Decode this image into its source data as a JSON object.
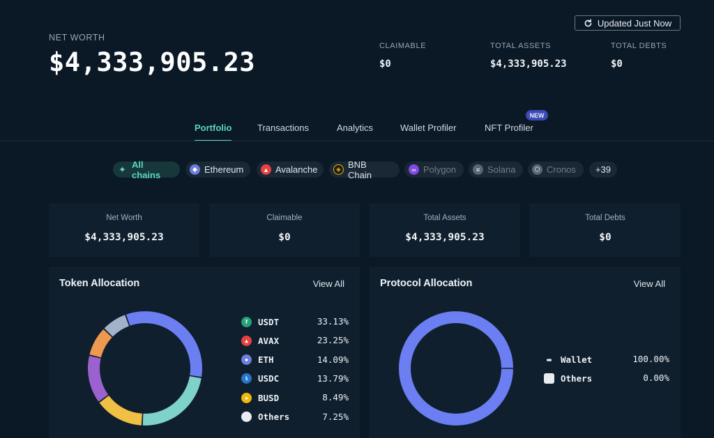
{
  "header": {
    "net_worth_label": "NET WORTH",
    "net_worth_value": "$4,333,905.23",
    "updated_label": "Updated Just Now",
    "stats": [
      {
        "label": "CLAIMABLE",
        "value": "$0"
      },
      {
        "label": "TOTAL ASSETS",
        "value": "$4,333,905.23"
      },
      {
        "label": "TOTAL DEBTS",
        "value": "$0"
      }
    ]
  },
  "tabs": [
    {
      "label": "Portfolio",
      "active": true
    },
    {
      "label": "Transactions"
    },
    {
      "label": "Analytics"
    },
    {
      "label": "Wallet Profiler"
    },
    {
      "label": "NFT Profiler",
      "badge": "NEW"
    }
  ],
  "chains": [
    {
      "label": "All chains",
      "icon": "sparkle-icon",
      "color": "#59d6c3",
      "state": "active"
    },
    {
      "label": "Ethereum",
      "icon": "ethereum-icon",
      "color": "#6c7ee0"
    },
    {
      "label": "Avalanche",
      "icon": "avalanche-icon",
      "color": "#e84142"
    },
    {
      "label": "BNB Chain",
      "icon": "bnb-icon",
      "color": "#f0b90b"
    },
    {
      "label": "Polygon",
      "icon": "polygon-icon",
      "color": "#8247e5",
      "state": "dim"
    },
    {
      "label": "Solana",
      "icon": "solana-icon",
      "color": "#5a6674",
      "state": "dim"
    },
    {
      "label": "Cronos",
      "icon": "cronos-icon",
      "color": "#5a6674",
      "state": "dim"
    },
    {
      "label": "+39"
    }
  ],
  "cards": [
    {
      "label": "Net Worth",
      "value": "$4,333,905.23"
    },
    {
      "label": "Claimable",
      "value": "$0"
    },
    {
      "label": "Total Assets",
      "value": "$4,333,905.23"
    },
    {
      "label": "Total Debts",
      "value": "$0"
    }
  ],
  "token_panel": {
    "title": "Token Allocation",
    "view_all": "View All",
    "items": [
      {
        "name": "USDT",
        "pct": "33.13%",
        "value": 33.13,
        "color": "#6b7ff2",
        "icon_color": "#26a17b",
        "icon": "tether-icon"
      },
      {
        "name": "AVAX",
        "pct": "23.25%",
        "value": 23.25,
        "color": "#7fd1cb",
        "icon_color": "#e84142",
        "icon": "avalanche-icon"
      },
      {
        "name": "ETH",
        "pct": "14.09%",
        "value": 14.09,
        "color": "#f0c044",
        "icon_color": "#6c7ee0",
        "icon": "ethereum-icon"
      },
      {
        "name": "USDC",
        "pct": "13.79%",
        "value": 13.79,
        "color": "#9b62cf",
        "icon_color": "#2775ca",
        "icon": "usdc-icon"
      },
      {
        "name": "BUSD",
        "pct": "8.49%",
        "value": 8.49,
        "color": "#ee9850",
        "icon_color": "#f0b90b",
        "icon": "busd-icon"
      },
      {
        "name": "Others",
        "pct": "7.25%",
        "value": 7.25,
        "color": "#a3b2cb",
        "icon_color": "#e8ecf0",
        "icon": "others-icon"
      }
    ]
  },
  "protocol_panel": {
    "title": "Protocol Allocation",
    "view_all": "View All",
    "items": [
      {
        "name": "Wallet",
        "pct": "100.00%",
        "value": 100.0,
        "color": "#6b7ff2",
        "icon": "wallet-icon"
      },
      {
        "name": "Others",
        "pct": "0.00%",
        "value": 0.0,
        "color": "#e8ecf0",
        "icon": "others-icon"
      }
    ]
  }
}
